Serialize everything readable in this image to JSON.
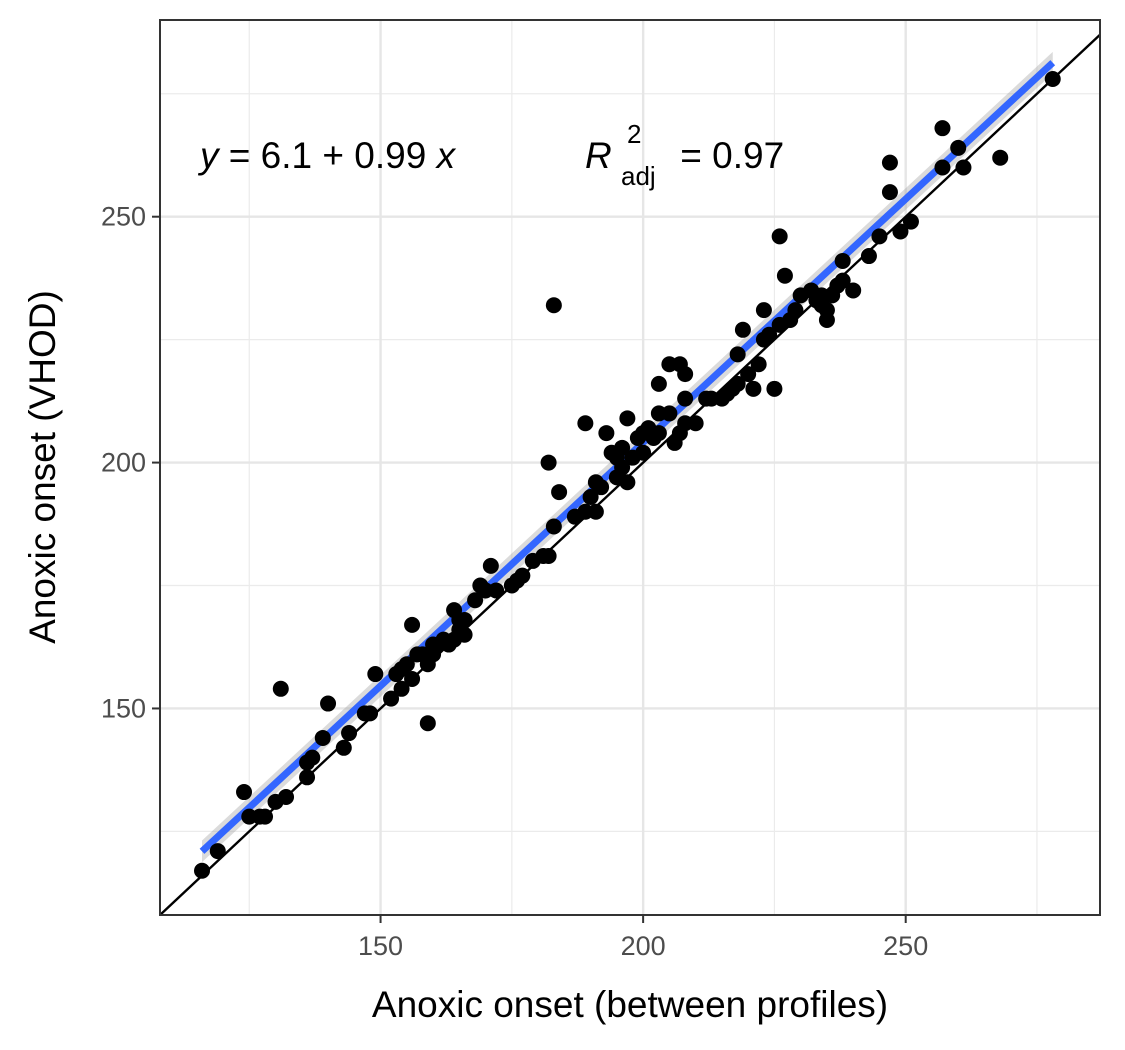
{
  "chart_data": {
    "type": "scatter",
    "xlabel": "Anoxic onset (between profiles)",
    "ylabel": "Anoxic onset (VHOD)",
    "xlim": [
      108,
      287
    ],
    "ylim": [
      108,
      290
    ],
    "xticks": [
      150,
      200,
      250
    ],
    "yticks": [
      150,
      200,
      250
    ],
    "x_tick_labels": [
      "150",
      "200",
      "250"
    ],
    "y_tick_labels": [
      "150",
      "200",
      "250"
    ],
    "grid": true,
    "legend": "none",
    "annotation": {
      "equation": {
        "y_symbol": "y",
        "rhs": " = 6.1 + 0.99 ",
        "x_symbol": "x"
      },
      "r2": {
        "symbol": "R",
        "superscript": "2",
        "subscript": "adj",
        "value": " = 0.97"
      }
    },
    "fit_line": {
      "intercept": 6.1,
      "slope": 0.99,
      "x_range": [
        116,
        278
      ],
      "color": "#3366ff"
    },
    "identity_line": {
      "intercept": 0,
      "slope": 1,
      "color": "#000000"
    },
    "points": [
      [
        116,
        117
      ],
      [
        119,
        121
      ],
      [
        124,
        133
      ],
      [
        125,
        128
      ],
      [
        127,
        128
      ],
      [
        128,
        128
      ],
      [
        130,
        131
      ],
      [
        131,
        154
      ],
      [
        132,
        132
      ],
      [
        136,
        136
      ],
      [
        136,
        139
      ],
      [
        137,
        140
      ],
      [
        139,
        144
      ],
      [
        140,
        151
      ],
      [
        143,
        142
      ],
      [
        144,
        145
      ],
      [
        147,
        149
      ],
      [
        148,
        149
      ],
      [
        149,
        157
      ],
      [
        152,
        152
      ],
      [
        153,
        157
      ],
      [
        154,
        154
      ],
      [
        154,
        158
      ],
      [
        155,
        159
      ],
      [
        156,
        156
      ],
      [
        156,
        167
      ],
      [
        157,
        161
      ],
      [
        158,
        161
      ],
      [
        159,
        159
      ],
      [
        159,
        147
      ],
      [
        160,
        161
      ],
      [
        160,
        163
      ],
      [
        161,
        163
      ],
      [
        162,
        164
      ],
      [
        163,
        163
      ],
      [
        164,
        164
      ],
      [
        164,
        170
      ],
      [
        165,
        166
      ],
      [
        165,
        168
      ],
      [
        166,
        165
      ],
      [
        166,
        168
      ],
      [
        168,
        172
      ],
      [
        169,
        175
      ],
      [
        170,
        174
      ],
      [
        171,
        179
      ],
      [
        172,
        174
      ],
      [
        175,
        175
      ],
      [
        176,
        176
      ],
      [
        177,
        177
      ],
      [
        179,
        180
      ],
      [
        181,
        181
      ],
      [
        182,
        181
      ],
      [
        182,
        200
      ],
      [
        183,
        187
      ],
      [
        184,
        194
      ],
      [
        183,
        232
      ],
      [
        187,
        189
      ],
      [
        189,
        190
      ],
      [
        189,
        208
      ],
      [
        190,
        193
      ],
      [
        191,
        196
      ],
      [
        191,
        190
      ],
      [
        192,
        195
      ],
      [
        193,
        206
      ],
      [
        194,
        202
      ],
      [
        195,
        197
      ],
      [
        195,
        201
      ],
      [
        196,
        199
      ],
      [
        196,
        203
      ],
      [
        197,
        196
      ],
      [
        197,
        209
      ],
      [
        198,
        201
      ],
      [
        199,
        205
      ],
      [
        200,
        202
      ],
      [
        200,
        206
      ],
      [
        201,
        207
      ],
      [
        202,
        205
      ],
      [
        203,
        206
      ],
      [
        203,
        210
      ],
      [
        203,
        216
      ],
      [
        205,
        210
      ],
      [
        205,
        220
      ],
      [
        206,
        204
      ],
      [
        207,
        206
      ],
      [
        207,
        220
      ],
      [
        208,
        208
      ],
      [
        208,
        218
      ],
      [
        208,
        213
      ],
      [
        210,
        208
      ],
      [
        212,
        213
      ],
      [
        213,
        213
      ],
      [
        215,
        213
      ],
      [
        216,
        214
      ],
      [
        217,
        215
      ],
      [
        218,
        216
      ],
      [
        218,
        222
      ],
      [
        219,
        227
      ],
      [
        220,
        218
      ],
      [
        221,
        215
      ],
      [
        222,
        220
      ],
      [
        223,
        225
      ],
      [
        223,
        231
      ],
      [
        224,
        226
      ],
      [
        225,
        215
      ],
      [
        226,
        228
      ],
      [
        226,
        246
      ],
      [
        227,
        238
      ],
      [
        228,
        229
      ],
      [
        229,
        231
      ],
      [
        230,
        234
      ],
      [
        232,
        235
      ],
      [
        233,
        233
      ],
      [
        234,
        234
      ],
      [
        234,
        232
      ],
      [
        235,
        229
      ],
      [
        235,
        231
      ],
      [
        236,
        234
      ],
      [
        237,
        236
      ],
      [
        238,
        237
      ],
      [
        238,
        241
      ],
      [
        240,
        235
      ],
      [
        243,
        242
      ],
      [
        245,
        246
      ],
      [
        247,
        255
      ],
      [
        247,
        261
      ],
      [
        249,
        247
      ],
      [
        251,
        249
      ],
      [
        257,
        268
      ],
      [
        257,
        260
      ],
      [
        260,
        264
      ],
      [
        261,
        260
      ],
      [
        268,
        262
      ],
      [
        278,
        278
      ]
    ]
  }
}
